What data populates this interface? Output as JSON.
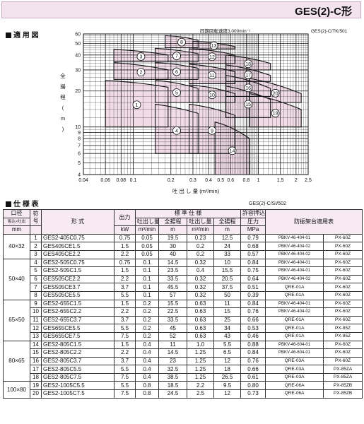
{
  "header": {
    "title": "GES(2)-C形"
  },
  "chart_section": {
    "label": "適 用 図"
  },
  "chart_data": {
    "type": "area",
    "note_rpm": "同期回転速度3,000min⁻¹",
    "code": "GES(2)-C/TK/501",
    "ylabel": "全 揚 程 (m)",
    "xlabel": "吐 出 し 量 (m³/min)",
    "x_scale": "log",
    "y_scale": "log",
    "xlim": [
      0.04,
      2.5
    ],
    "ylim": [
      4,
      60
    ],
    "x_ticks": [
      0.04,
      0.06,
      0.08,
      0.1,
      0.2,
      0.3,
      0.4,
      0.5,
      0.6,
      0.8,
      1,
      1.5,
      2,
      2.5
    ],
    "x_tick_labels": [
      "0.04",
      "0.06",
      "0.08",
      "0.1",
      "0.2",
      "0.3",
      "0.4",
      "0.5",
      "0.6",
      "0.8",
      "1",
      "1.5",
      "2",
      "2.5"
    ],
    "y_ticks": [
      4,
      5,
      6,
      7,
      8,
      9,
      10,
      20,
      30,
      40,
      50,
      60
    ],
    "y_tick_labels": [
      "4",
      "5",
      "6",
      "7",
      "8",
      "9",
      "10",
      "20",
      "30",
      "40",
      "50",
      "60"
    ],
    "grid": true,
    "regions": [
      {
        "label": "1",
        "xlo": 0.06,
        "xhi": 0.19,
        "y_top": [
          24.5,
          23.5,
          21.5
        ],
        "y_bottom": 10
      },
      {
        "label": "2",
        "xlo": 0.07,
        "xhi": 0.19,
        "y_top": [
          34.5,
          33,
          30
        ],
        "y_bottom": 25
      },
      {
        "label": "3",
        "xlo": 0.07,
        "xhi": 0.19,
        "y_top": [
          44.5,
          43,
          40
        ],
        "y_bottom": 35
      },
      {
        "label": "4",
        "xlo": 0.15,
        "xhi": 0.33,
        "y_top": [
          15.5,
          14.5,
          13
        ],
        "y_bottom": 6
      },
      {
        "label": "5",
        "xlo": 0.15,
        "xhi": 0.33,
        "y_top": [
          24.5,
          23.5,
          21
        ],
        "y_bottom": 16
      },
      {
        "label": "6",
        "xlo": 0.15,
        "xhi": 0.33,
        "y_top": [
          34.5,
          33.5,
          31
        ],
        "y_bottom": 25
      },
      {
        "label": "7",
        "xlo": 0.15,
        "xhi": 0.33,
        "y_top": [
          45.5,
          44,
          41
        ],
        "y_bottom": 35
      },
      {
        "label": "8",
        "xlo": 0.18,
        "xhi": 0.33,
        "y_top": [
          58,
          57,
          53
        ],
        "y_bottom": 46
      },
      {
        "label": "9",
        "xlo": 0.28,
        "xhi": 0.65,
        "y_top": [
          15.5,
          14.5,
          12.5
        ],
        "y_bottom": 6
      },
      {
        "label": "10",
        "xlo": 0.28,
        "xhi": 0.65,
        "y_top": [
          22.5,
          21.5,
          19
        ],
        "y_bottom": 16
      },
      {
        "label": "11",
        "xlo": 0.28,
        "xhi": 0.65,
        "y_top": [
          33.5,
          32,
          29
        ],
        "y_bottom": 23
      },
      {
        "label": "12",
        "xlo": 0.28,
        "xhi": 0.65,
        "y_top": [
          45,
          44,
          40
        ],
        "y_bottom": 34
      },
      {
        "label": "13",
        "xlo": 0.3,
        "xhi": 0.65,
        "y_top": [
          52,
          51,
          47
        ],
        "y_bottom": 45
      },
      {
        "label": "14",
        "xlo": 0.45,
        "xhi": 0.85,
        "y_top": [
          11,
          10,
          8
        ],
        "y_bottom": 4
      },
      {
        "label": "15",
        "xlo": 0.55,
        "xhi": 1.25,
        "y_top": [
          22,
          20,
          17
        ],
        "y_bottom": 12
      },
      {
        "label": "16",
        "xlo": 0.55,
        "xhi": 1.25,
        "y_top": [
          27,
          25,
          21
        ],
        "y_bottom": 18
      },
      {
        "label": "17",
        "xlo": 0.55,
        "xhi": 1.25,
        "y_top": [
          33,
          31,
          27
        ],
        "y_bottom": 24
      },
      {
        "label": "18",
        "xlo": 0.55,
        "xhi": 1.25,
        "y_top": [
          40,
          38,
          34
        ],
        "y_bottom": 30
      },
      {
        "label": "19",
        "xlo": 0.85,
        "xhi": 2.2,
        "y_top": [
          19,
          17,
          14
        ],
        "y_bottom": 10
      },
      {
        "label": "20",
        "xlo": 0.85,
        "xhi": 2.2,
        "y_top": [
          25.5,
          23,
          19
        ],
        "y_bottom": 16
      }
    ]
  },
  "table_section": {
    "label": "仕 様 表",
    "code": "GES(2)-C/SI/502"
  },
  "table": {
    "h_bore": "口径",
    "h_bore_sub": "吸込×吐出",
    "h_bore_unit": "mm",
    "h_no": "符号",
    "h_model": "形 式",
    "h_output": "出力",
    "h_output_unit": "kW",
    "h_std": "標 準 仕 様",
    "h_flow": "吐出し量",
    "h_head": "全揚程",
    "h_flow_unit": "m³/min",
    "h_head_unit": "m",
    "h_press": "許容押込",
    "h_press2": "圧力",
    "h_press_unit": "MPa",
    "h_mount": "防振架台適用表",
    "groups": [
      {
        "bore": "40×32",
        "rows": [
          [
            "1",
            "GES2-405C0.75",
            "0.75",
            "0.05",
            "19.5",
            "0.23",
            "12.5",
            "0.79",
            "PBKV-46-404-01",
            "PX-60Z"
          ],
          [
            "2",
            "GES405CE1.5",
            "1.5",
            "0.05",
            "30",
            "0.2",
            "24",
            "0.68",
            "PBKV-46-404-02",
            "PX-60Z"
          ],
          [
            "3",
            "GES405CE2.2",
            "2.2",
            "0.05",
            "40",
            "0.2",
            "33",
            "0.57",
            "PBKV-46-404-02",
            "PX-60Z"
          ]
        ]
      },
      {
        "bore": "50×40",
        "rows": [
          [
            "4",
            "GES2-505C0.75",
            "0.75",
            "0.1",
            "14.5",
            "0.32",
            "10",
            "0.84",
            "PBKV-46-404-01",
            "PX-60Z"
          ],
          [
            "5",
            "GES2-505C1.5",
            "1.5",
            "0.1",
            "23.5",
            "0.4",
            "15.5",
            "0.75",
            "PBKV-46-404-01",
            "PX-60Z"
          ],
          [
            "6",
            "GES505CE2.2",
            "2.2",
            "0.1",
            "33.5",
            "0.32",
            "20.5",
            "0.64",
            "PBKV-46-404-02",
            "PX-60Z"
          ],
          [
            "7",
            "GES505CE3.7",
            "3.7",
            "0.1",
            "45.5",
            "0.32",
            "37.5",
            "0.51",
            "QRE-01A",
            "PX-60Z"
          ],
          [
            "8",
            "GES505CE5.5",
            "5.5",
            "0.1",
            "57",
            "0.32",
            "50",
            "0.39",
            "QRE-01A",
            "PX-60Z"
          ]
        ]
      },
      {
        "bore": "65×50",
        "rows": [
          [
            "9",
            "GES2-655C1.5",
            "1.5",
            "0.2",
            "15.5",
            "0.63",
            "11",
            "0.84",
            "PBKV-46-404-01",
            "PX-60Z"
          ],
          [
            "10",
            "GES2-655C2.2",
            "2.2",
            "0.2",
            "22.5",
            "0.63",
            "15",
            "0.76",
            "PBKV-46-404-02",
            "PX-60Z"
          ],
          [
            "11",
            "GES2-655C3.7",
            "3.7",
            "0.2",
            "33.5",
            "0.63",
            "25",
            "0.66",
            "QRE-01A",
            "PX-60Z"
          ],
          [
            "12",
            "GES655CE5.5",
            "5.5",
            "0.2",
            "45",
            "0.63",
            "34",
            "0.53",
            "QRE-01A",
            "PX-85Z"
          ],
          [
            "13",
            "GES655CE7.5",
            "7.5",
            "0.2",
            "52",
            "0.63",
            "43",
            "0.46",
            "QRE-01A",
            "PX-85Z"
          ]
        ]
      },
      {
        "bore": "80×65",
        "rows": [
          [
            "14",
            "GES2-805C1.5",
            "1.5",
            "0.4",
            "11",
            "1.0",
            "5.5",
            "0.88",
            "PBKV-46-604-01",
            "PX-60Z"
          ],
          [
            "15",
            "GES2-805C2.2",
            "2.2",
            "0.4",
            "14.5",
            "1.25",
            "6.5",
            "0.84",
            "PBKV-46-604-01",
            "PX-60Z"
          ],
          [
            "16",
            "GES2-805C3.7",
            "3.7",
            "0.4",
            "23",
            "1.25",
            "12",
            "0.76",
            "QRE-03A",
            "PX-60Z"
          ],
          [
            "17",
            "GES2-805C5.5",
            "5.5",
            "0.4",
            "32.5",
            "1.25",
            "18",
            "0.66",
            "QRE-03A",
            "PX-85ZA"
          ],
          [
            "18",
            "GES2-805C7.5",
            "7.5",
            "0.4",
            "38.5",
            "1.25",
            "26.5",
            "0.61",
            "QRE-03A",
            "PX-85ZA"
          ]
        ]
      },
      {
        "bore": "100×80",
        "rows": [
          [
            "19",
            "GES2-1005C5.5",
            "5.5",
            "0.8",
            "18.5",
            "2.2",
            "9.5",
            "0.80",
            "QRE-06A",
            "PX-85ZB"
          ],
          [
            "20",
            "GES2-1005C7.5",
            "7.5",
            "0.8",
            "24.5",
            "2.5",
            "12",
            "0.73",
            "QRE-06A",
            "PX-85ZB"
          ]
        ]
      }
    ]
  },
  "colors": {
    "header_bg": "#f3e3ee",
    "region_fill": "#f1dbe7",
    "grid": "#444444"
  }
}
